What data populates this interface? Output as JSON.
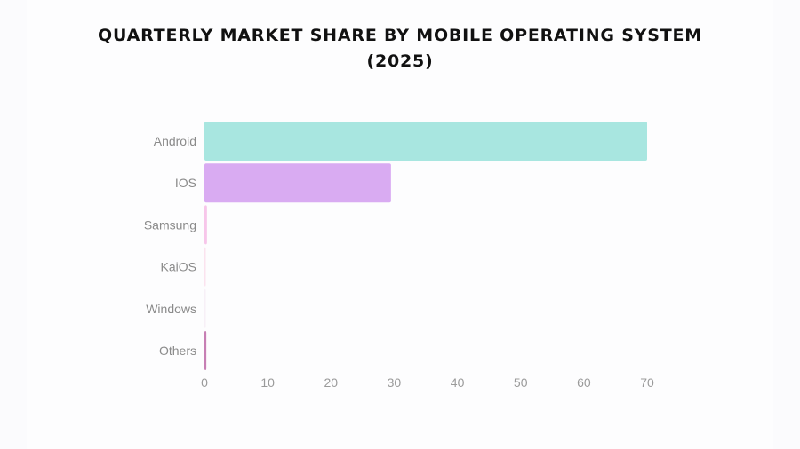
{
  "chart_data": {
    "type": "bar",
    "orientation": "horizontal",
    "title_line1": "QUARTERLY MARKET SHARE BY MOBILE OPERATING SYSTEM",
    "title_line2": "(2025)",
    "categories": [
      "Android",
      "IOS",
      "Samsung",
      "KaiOS",
      "Windows",
      "Others"
    ],
    "values": [
      70,
      29.5,
      0.4,
      0.1,
      0.05,
      0.3
    ],
    "colors": [
      "#a8e6e0",
      "#d9abf2",
      "#f7c6ea",
      "#fbe3ef",
      "#f7f0f7",
      "#c77fb4"
    ],
    "xlim": [
      0,
      70
    ],
    "xticks": [
      0,
      10,
      20,
      30,
      40,
      50,
      60,
      70
    ],
    "grid": false,
    "xlabel": "",
    "ylabel": ""
  }
}
